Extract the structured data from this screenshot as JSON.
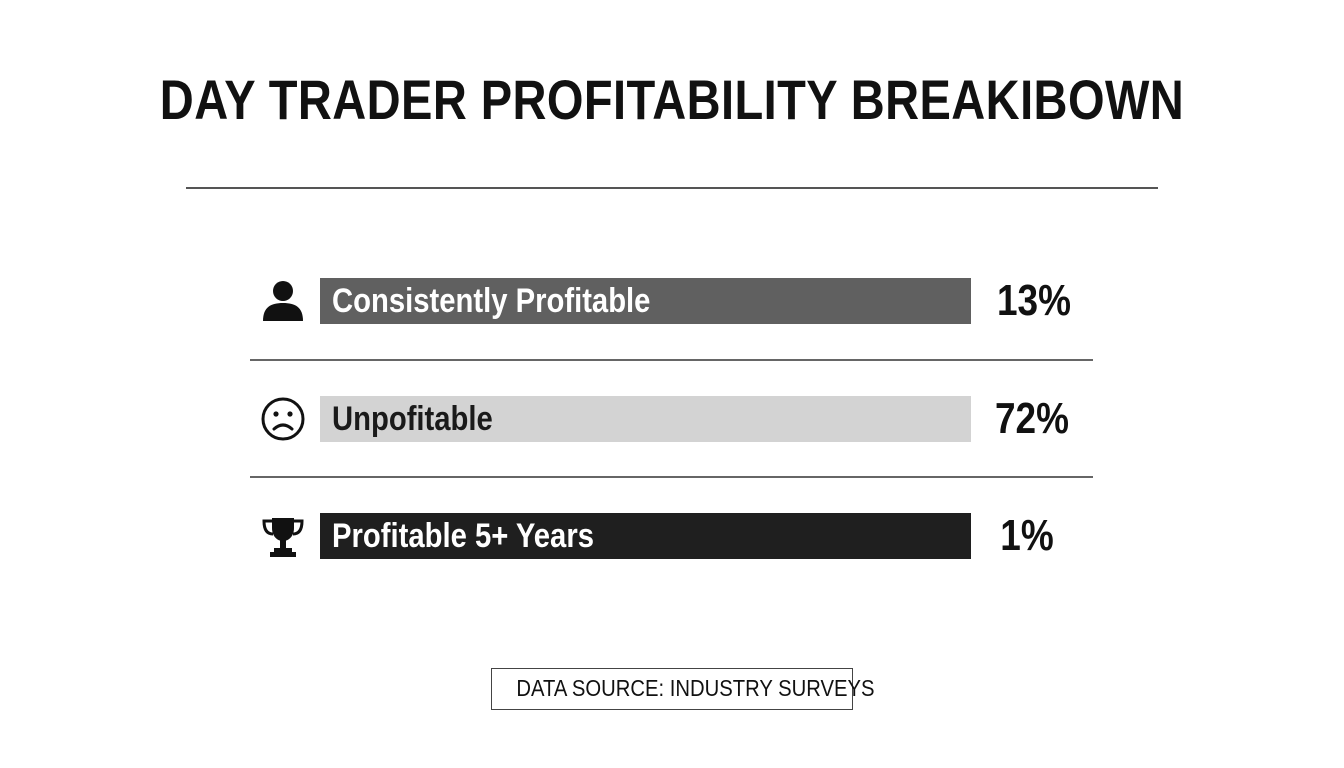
{
  "title": "DAY TRADER PROFITABILITY BREAKIBOWN",
  "source": "DATA SOURCE: INDUSTRY SURVEYS",
  "chart_data": {
    "type": "bar",
    "title": "DAY TRADER PROFITABILITY BREAKIBOWN",
    "categories": [
      "Consistently Profitable",
      "Unpofitable",
      "Profitable 5+ Years"
    ],
    "values": [
      13,
      72,
      1
    ],
    "value_labels": [
      "13%",
      "72%",
      "1%"
    ],
    "icons": [
      "person-icon",
      "sad-face-icon",
      "trophy-icon"
    ],
    "bar_colors": [
      "#606060",
      "#d3d3d3",
      "#1f1f1f"
    ],
    "label_colors": [
      "#ffffff",
      "#1a1a1a",
      "#ffffff"
    ],
    "orientation": "horizontal",
    "xlim": [
      0,
      100
    ],
    "grid": false,
    "legend": "none"
  }
}
